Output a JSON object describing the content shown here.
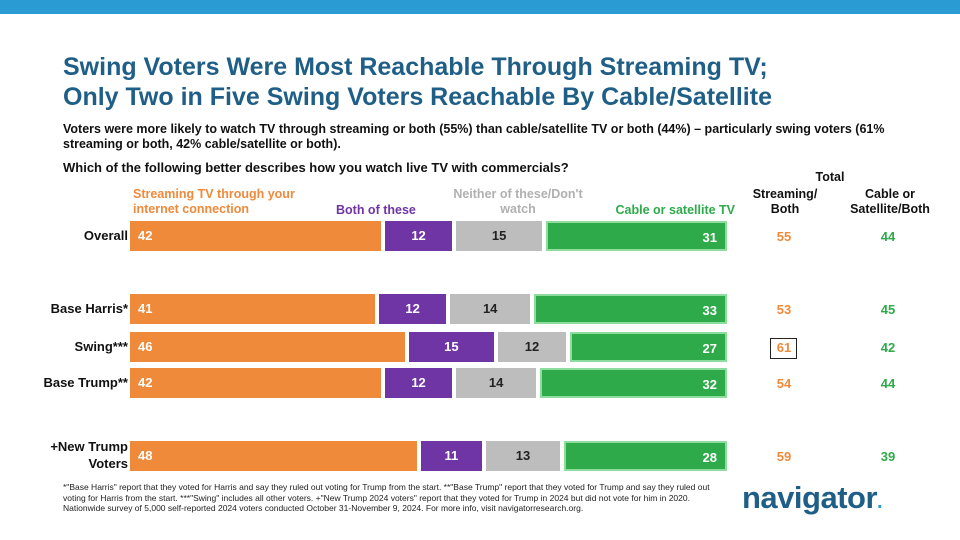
{
  "title_line1": "Swing Voters Were Most Reachable Through Streaming TV;",
  "title_line2": "Only Two in Five Swing Voters Reachable By Cable/Satellite",
  "subtitle": "Voters were more likely to watch TV through streaming or both (55%) than cable/satellite TV or both (44%) – particularly swing voters (61% streaming or both, 42% cable/satellite or both).",
  "question": "Which of the following better describes how you watch live TV with commercials?",
  "total_header": "Total",
  "col_streaming_header": "Streaming/ Both",
  "col_cable_header": "Cable or Satellite/Both",
  "footnote": "*\"Base Harris\" report that they voted for Harris and say they ruled out voting for Trump from the start. **\"Base Trump\" report that they voted for Trump and say they ruled out voting for Harris from the start. ***\"Swing\" includes all other voters. +\"New Trump 2024 voters\" report that they voted for Trump in 2024 but did not vote for him in 2020. Nationwide survey of 5,000 self-reported 2024 voters conducted October 31-November 9, 2024. For more info, visit navigatorresearch.org.",
  "logo_text": "navigator",
  "logo_dot": ".",
  "colors": {
    "streaming": "#ef8a3b",
    "both": "#6f35a5",
    "neither": "#bdbdbd",
    "cable": "#2eaa4a",
    "title": "#1f5f87",
    "topbar": "#2b9bd3"
  },
  "chart_data": {
    "type": "bar",
    "orientation": "horizontal-stacked-100",
    "series": [
      {
        "name": "Streaming TV through your internet connection",
        "values": [
          42,
          41,
          46,
          42,
          48
        ]
      },
      {
        "name": "Both of these",
        "values": [
          12,
          12,
          15,
          12,
          11
        ]
      },
      {
        "name": "Neither of these/Don't watch",
        "values": [
          15,
          14,
          12,
          14,
          13
        ]
      },
      {
        "name": "Cable or satellite TV",
        "values": [
          31,
          33,
          27,
          32,
          28
        ]
      }
    ],
    "categories": [
      "Overall",
      "Base Harris*",
      "Swing***",
      "Base Trump**",
      "+New Trump Voters"
    ],
    "totals": {
      "streaming_both": [
        55,
        53,
        61,
        54,
        59
      ],
      "cable_satellite_both": [
        44,
        45,
        42,
        44,
        39
      ]
    },
    "highlighted": "Swing*** streaming_both 61",
    "legend_placement": "top"
  }
}
